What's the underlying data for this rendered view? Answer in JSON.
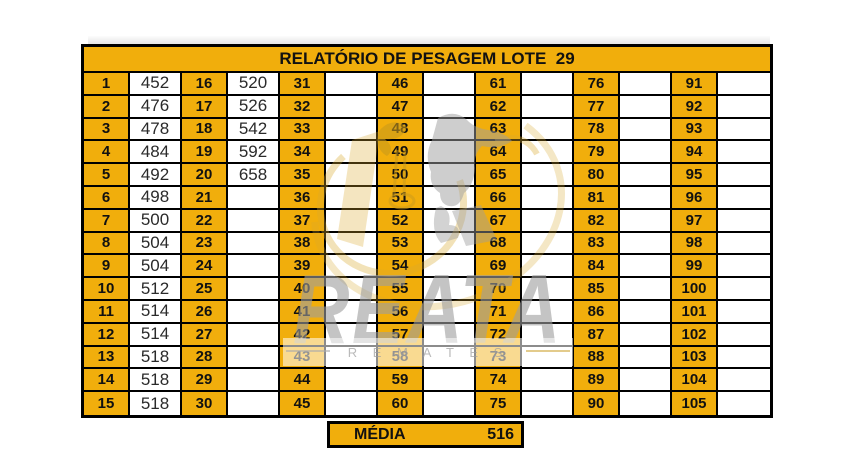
{
  "title": "RELATÓRIO DE PESAGEM LOTE  29",
  "media": {
    "label": "MÉDIA",
    "value": "516"
  },
  "watermark": {
    "brand": "REATA",
    "sub": "R E M A T E S"
  },
  "colors": {
    "accent_yellow": "#F1AE0C",
    "border_black": "#000000",
    "watermark_gray": "#9E9E9E",
    "watermark_gold": "#D9A92F"
  },
  "table": {
    "rows_per_column": 15,
    "columns": [
      {
        "indices": [
          1,
          2,
          3,
          4,
          5,
          6,
          7,
          8,
          9,
          10,
          11,
          12,
          13,
          14,
          15
        ],
        "values": [
          "452",
          "476",
          "478",
          "484",
          "492",
          "498",
          "500",
          "504",
          "504",
          "512",
          "514",
          "514",
          "518",
          "518",
          "518"
        ]
      },
      {
        "indices": [
          16,
          17,
          18,
          19,
          20,
          21,
          22,
          23,
          24,
          25,
          26,
          27,
          28,
          29,
          30
        ],
        "values": [
          "520",
          "526",
          "542",
          "592",
          "658",
          "",
          "",
          "",
          "",
          "",
          "",
          "",
          "",
          "",
          ""
        ]
      },
      {
        "indices": [
          31,
          32,
          33,
          34,
          35,
          36,
          37,
          38,
          39,
          40,
          41,
          42,
          43,
          44,
          45
        ],
        "values": [
          "",
          "",
          "",
          "",
          "",
          "",
          "",
          "",
          "",
          "",
          "",
          "",
          "",
          "",
          ""
        ]
      },
      {
        "indices": [
          46,
          47,
          48,
          49,
          50,
          51,
          52,
          53,
          54,
          55,
          56,
          57,
          58,
          59,
          60
        ],
        "values": [
          "",
          "",
          "",
          "",
          "",
          "",
          "",
          "",
          "",
          "",
          "",
          "",
          "",
          "",
          ""
        ]
      },
      {
        "indices": [
          61,
          62,
          63,
          64,
          65,
          66,
          67,
          68,
          69,
          70,
          71,
          72,
          73,
          74,
          75
        ],
        "values": [
          "",
          "",
          "",
          "",
          "",
          "",
          "",
          "",
          "",
          "",
          "",
          "",
          "",
          "",
          ""
        ]
      },
      {
        "indices": [
          76,
          77,
          78,
          79,
          80,
          81,
          82,
          83,
          84,
          85,
          86,
          87,
          88,
          89,
          90
        ],
        "values": [
          "",
          "",
          "",
          "",
          "",
          "",
          "",
          "",
          "",
          "",
          "",
          "",
          "",
          "",
          ""
        ]
      },
      {
        "indices": [
          91,
          92,
          93,
          94,
          95,
          96,
          97,
          98,
          99,
          100,
          101,
          102,
          103,
          104,
          105
        ],
        "values": [
          "",
          "",
          "",
          "",
          "",
          "",
          "",
          "",
          "",
          "",
          "",
          "",
          "",
          "",
          ""
        ]
      }
    ]
  }
}
